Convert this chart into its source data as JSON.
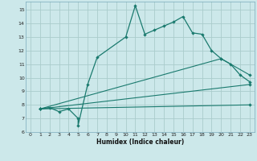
{
  "title": "",
  "xlabel": "Humidex (Indice chaleur)",
  "bg_color": "#cce8ea",
  "grid_color": "#aacccc",
  "line_color": "#1a7a6e",
  "xlim": [
    -0.5,
    23.5
  ],
  "ylim": [
    6,
    15.6
  ],
  "xticks": [
    0,
    1,
    2,
    3,
    4,
    5,
    6,
    7,
    8,
    9,
    10,
    11,
    12,
    13,
    14,
    15,
    16,
    17,
    18,
    19,
    20,
    21,
    22,
    23
  ],
  "yticks": [
    6,
    7,
    8,
    9,
    10,
    11,
    12,
    13,
    14,
    15
  ],
  "series1_x": [
    1,
    2,
    3,
    4,
    5,
    5,
    6,
    7,
    10,
    11,
    12,
    13,
    14,
    15,
    16,
    17,
    18,
    19,
    20,
    21,
    22,
    23
  ],
  "series1_y": [
    7.7,
    7.8,
    7.5,
    7.7,
    7.0,
    6.5,
    9.5,
    11.5,
    13.0,
    15.3,
    13.2,
    13.5,
    13.8,
    14.1,
    14.5,
    13.3,
    13.2,
    12.0,
    11.4,
    11.0,
    10.2,
    9.7
  ],
  "series2_x": [
    1,
    23
  ],
  "series2_y": [
    7.7,
    9.5
  ],
  "series3_x": [
    1,
    20,
    23
  ],
  "series3_y": [
    7.7,
    11.4,
    10.2
  ],
  "series4_x": [
    1,
    23
  ],
  "series4_y": [
    7.7,
    8.0
  ]
}
